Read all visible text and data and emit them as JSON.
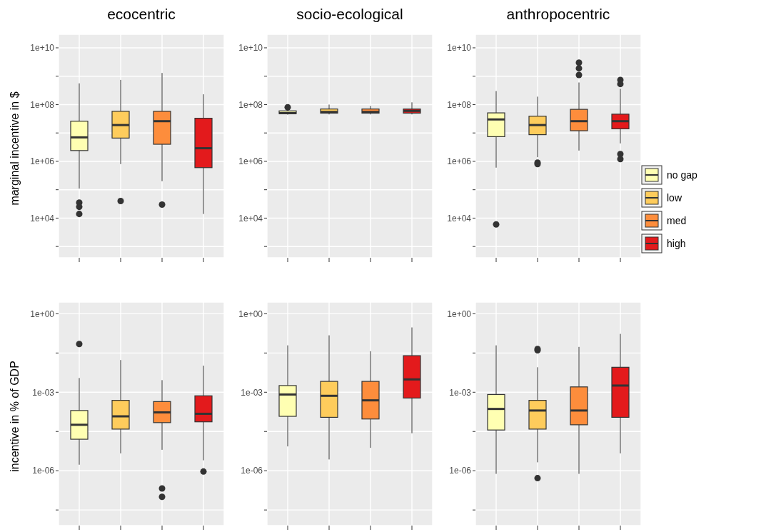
{
  "chart_data": [
    {
      "type": "box",
      "title": "ecocentric",
      "ylabel": "marginal incentive in $",
      "log": true,
      "grid": true,
      "categories": [
        null,
        null,
        null,
        null
      ],
      "ylim": [
        400,
        30000000000.0
      ],
      "yticks": [
        {
          "value": 1000,
          "label": null
        },
        {
          "value": 10000,
          "label": "1e+04"
        },
        {
          "value": 100000,
          "label": null
        },
        {
          "value": 1000000,
          "label": "1e+06"
        },
        {
          "value": 10000000,
          "label": null
        },
        {
          "value": 100000000,
          "label": "1e+08"
        },
        {
          "value": 1000000000,
          "label": null
        },
        {
          "value": 10000000000,
          "label": "1e+10"
        }
      ],
      "series": [
        {
          "color": "#ffffb2",
          "boxes": [
            {
              "low": 110000,
              "q1": 2400000,
              "median": 7000000,
              "q3": 26000000,
              "high": 560000000,
              "outliers": [
                35000,
                25000,
                14000
              ]
            },
            null,
            null,
            null
          ]
        },
        {
          "color": "#fecc5c",
          "boxes": [
            null,
            {
              "low": 800000,
              "q1": 6600000,
              "median": 19000000,
              "q3": 58000000,
              "high": 740000000,
              "outliers": [
                40000
              ]
            },
            null,
            null
          ]
        },
        {
          "color": "#fd8d3c",
          "boxes": [
            null,
            null,
            {
              "low": 200000,
              "q1": 4000000,
              "median": 26000000,
              "q3": 58000000,
              "high": 1300000000,
              "outliers": [
                30000
              ]
            },
            null
          ]
        },
        {
          "color": "#e31a1c",
          "boxes": [
            null,
            null,
            null,
            {
              "low": 14000,
              "q1": 600000,
              "median": 2900000,
              "q3": 33000000,
              "high": 230000000
            }
          ]
        }
      ]
    },
    {
      "type": "box",
      "title": "socio-ecological",
      "log": true,
      "grid": true,
      "categories": [
        null,
        null,
        null,
        null
      ],
      "ylim": [
        400,
        30000000000.0
      ],
      "yticks": [
        {
          "value": 1000,
          "label": null
        },
        {
          "value": 10000,
          "label": "1e+04"
        },
        {
          "value": 100000,
          "label": null
        },
        {
          "value": 1000000,
          "label": "1e+06"
        },
        {
          "value": 10000000,
          "label": null
        },
        {
          "value": 100000000,
          "label": "1e+08"
        },
        {
          "value": 1000000000,
          "label": null
        },
        {
          "value": 10000000000,
          "label": "1e+10"
        }
      ],
      "series": [
        {
          "color": "#ffffb2",
          "boxes": [
            {
              "low": 44000000,
              "q1": 48000000,
              "median": 50000000,
              "q3": 60000000,
              "high": 70000000,
              "outliers": [
                80000000
              ]
            },
            null,
            null,
            null
          ]
        },
        {
          "color": "#fecc5c",
          "boxes": [
            null,
            {
              "low": 45000000,
              "q1": 50000000,
              "median": 55000000,
              "q3": 70000000,
              "high": 100000000
            },
            null,
            null
          ]
        },
        {
          "color": "#fd8d3c",
          "boxes": [
            null,
            null,
            {
              "low": 45000000,
              "q1": 50000000,
              "median": 55000000,
              "q3": 70000000,
              "high": 90000000
            },
            null
          ]
        },
        {
          "color": "#e31a1c",
          "boxes": [
            null,
            null,
            null,
            {
              "low": 45000000,
              "q1": 50000000,
              "median": 60000000,
              "q3": 70000000,
              "high": 120000000
            }
          ]
        }
      ]
    },
    {
      "type": "box",
      "title": "anthropocentric",
      "log": true,
      "grid": true,
      "legend": "right",
      "categories": [
        null,
        null,
        null,
        null
      ],
      "ylim": [
        400,
        30000000000.0
      ],
      "yticks": [
        {
          "value": 1000,
          "label": null
        },
        {
          "value": 10000,
          "label": "1e+04"
        },
        {
          "value": 100000,
          "label": null
        },
        {
          "value": 1000000,
          "label": "1e+06"
        },
        {
          "value": 10000000,
          "label": null
        },
        {
          "value": 100000000,
          "label": "1e+08"
        },
        {
          "value": 1000000000,
          "label": null
        },
        {
          "value": 10000000000,
          "label": "1e+10"
        }
      ],
      "series": [
        {
          "name": "no gap",
          "color": "#ffffb2",
          "boxes": [
            {
              "low": 600000,
              "q1": 7400000,
              "median": 30000000,
              "q3": 51000000,
              "high": 300000000,
              "outliers": [
                6000
              ]
            },
            null,
            null,
            null
          ]
        },
        {
          "name": "low",
          "color": "#fecc5c",
          "boxes": [
            null,
            {
              "low": 1400000,
              "q1": 8700000,
              "median": 19000000,
              "q3": 39000000,
              "high": 190000000,
              "outliers": [
                900000,
                800000
              ]
            },
            null,
            null
          ]
        },
        {
          "name": "med",
          "color": "#fd8d3c",
          "boxes": [
            null,
            null,
            {
              "low": 2400000,
              "q1": 12000000,
              "median": 26000000,
              "q3": 68000000,
              "high": 600000000,
              "outliers": [
                3000000000,
                1900000000,
                1100000000
              ]
            },
            null
          ]
        },
        {
          "name": "high",
          "color": "#e31a1c",
          "boxes": [
            null,
            null,
            null,
            {
              "low": 4300000,
              "q1": 14000000,
              "median": 26000000,
              "q3": 46000000,
              "high": 360000000,
              "outliers": [
                740000000,
                530000000,
                1800000,
                1200000
              ]
            }
          ]
        }
      ]
    },
    {
      "type": "box",
      "ylabel": "incentive in % of GDP",
      "log": true,
      "grid": true,
      "categories": [
        null,
        null,
        null,
        null
      ],
      "ylim": [
        8e-09,
        2.8
      ],
      "yticks": [
        {
          "value": 3.16e-08,
          "label": null
        },
        {
          "value": 1e-06,
          "label": "1e-06"
        },
        {
          "value": 3.16e-05,
          "label": null
        },
        {
          "value": 0.001,
          "label": "1e-03"
        },
        {
          "value": 0.0316,
          "label": null
        },
        {
          "value": 1,
          "label": "1e+00"
        }
      ],
      "series": [
        {
          "color": "#ffffb2",
          "boxes": [
            {
              "low": 1.7e-06,
              "q1": 1.6e-05,
              "median": 5.7e-05,
              "q3": 0.0002,
              "high": 0.0035,
              "outliers": [
                0.07
              ]
            },
            null,
            null,
            null
          ]
        },
        {
          "color": "#fecc5c",
          "boxes": [
            null,
            {
              "low": 4.6e-06,
              "q1": 3.9e-05,
              "median": 0.00012,
              "q3": 0.00049,
              "high": 0.017
            },
            null,
            null
          ]
        },
        {
          "color": "#fd8d3c",
          "boxes": [
            null,
            null,
            {
              "low": 6.3e-06,
              "q1": 6.9e-05,
              "median": 0.00017,
              "q3": 0.00044,
              "high": 0.0029,
              "outliers": [
                2.1e-07,
                1e-07
              ]
            },
            null
          ]
        },
        {
          "color": "#e31a1c",
          "boxes": [
            null,
            null,
            null,
            {
              "low": 2.5e-06,
              "q1": 7.4e-05,
              "median": 0.00015,
              "q3": 0.00073,
              "high": 0.0104,
              "outliers": [
                9.3e-07
              ]
            }
          ]
        }
      ]
    },
    {
      "type": "box",
      "log": true,
      "grid": true,
      "categories": [
        null,
        null,
        null,
        null
      ],
      "ylim": [
        8e-09,
        2.8
      ],
      "yticks": [
        {
          "value": 3.16e-08,
          "label": null
        },
        {
          "value": 1e-06,
          "label": "1e-06"
        },
        {
          "value": 3.16e-05,
          "label": null
        },
        {
          "value": 0.001,
          "label": "1e-03"
        },
        {
          "value": 0.0316,
          "label": null
        },
        {
          "value": 1,
          "label": "1e+00"
        }
      ],
      "series": [
        {
          "color": "#ffffb2",
          "boxes": [
            {
              "low": 8.5e-06,
              "q1": 0.00012,
              "median": 0.00082,
              "q3": 0.0018,
              "high": 0.062
            },
            null,
            null,
            null
          ]
        },
        {
          "color": "#fecc5c",
          "boxes": [
            null,
            {
              "low": 2.7e-06,
              "q1": 0.00011,
              "median": 0.00073,
              "q3": 0.0026,
              "high": 0.15
            },
            null,
            null
          ]
        },
        {
          "color": "#fd8d3c",
          "boxes": [
            null,
            null,
            {
              "low": 7.5e-06,
              "q1": 9.5e-05,
              "median": 0.00049,
              "q3": 0.0026,
              "high": 0.037
            },
            null
          ]
        },
        {
          "color": "#e31a1c",
          "boxes": [
            null,
            null,
            null,
            {
              "low": 2.7e-05,
              "q1": 0.0006,
              "median": 0.0031,
              "q3": 0.025,
              "high": 0.3
            }
          ]
        }
      ]
    },
    {
      "type": "box",
      "log": true,
      "grid": true,
      "categories": [
        null,
        null,
        null,
        null
      ],
      "ylim": [
        8e-09,
        2.8
      ],
      "yticks": [
        {
          "value": 3.16e-08,
          "label": null
        },
        {
          "value": 1e-06,
          "label": "1e-06"
        },
        {
          "value": 3.16e-05,
          "label": null
        },
        {
          "value": 0.001,
          "label": "1e-03"
        },
        {
          "value": 0.0316,
          "label": null
        },
        {
          "value": 1,
          "label": "1e+00"
        }
      ],
      "series": [
        {
          "color": "#ffffb2",
          "boxes": [
            {
              "low": 7.6e-07,
              "q1": 3.6e-05,
              "median": 0.00023,
              "q3": 0.00082,
              "high": 0.062
            },
            null,
            null,
            null
          ]
        },
        {
          "color": "#fecc5c",
          "boxes": [
            null,
            {
              "low": 2.1e-06,
              "q1": 3.9e-05,
              "median": 0.0002,
              "q3": 0.00049,
              "high": 0.009,
              "outliers": [
                0.045,
                0.04,
                5.2e-07
              ]
            },
            null,
            null
          ]
        },
        {
          "color": "#fd8d3c",
          "boxes": [
            null,
            null,
            {
              "low": 7.6e-07,
              "q1": 5.7e-05,
              "median": 0.0002,
              "q3": 0.0016,
              "high": 0.054
            },
            null
          ]
        },
        {
          "color": "#e31a1c",
          "boxes": [
            null,
            null,
            null,
            {
              "low": 4.6e-06,
              "q1": 0.00011,
              "median": 0.0018,
              "q3": 0.009,
              "high": 0.17
            }
          ]
        }
      ]
    }
  ]
}
